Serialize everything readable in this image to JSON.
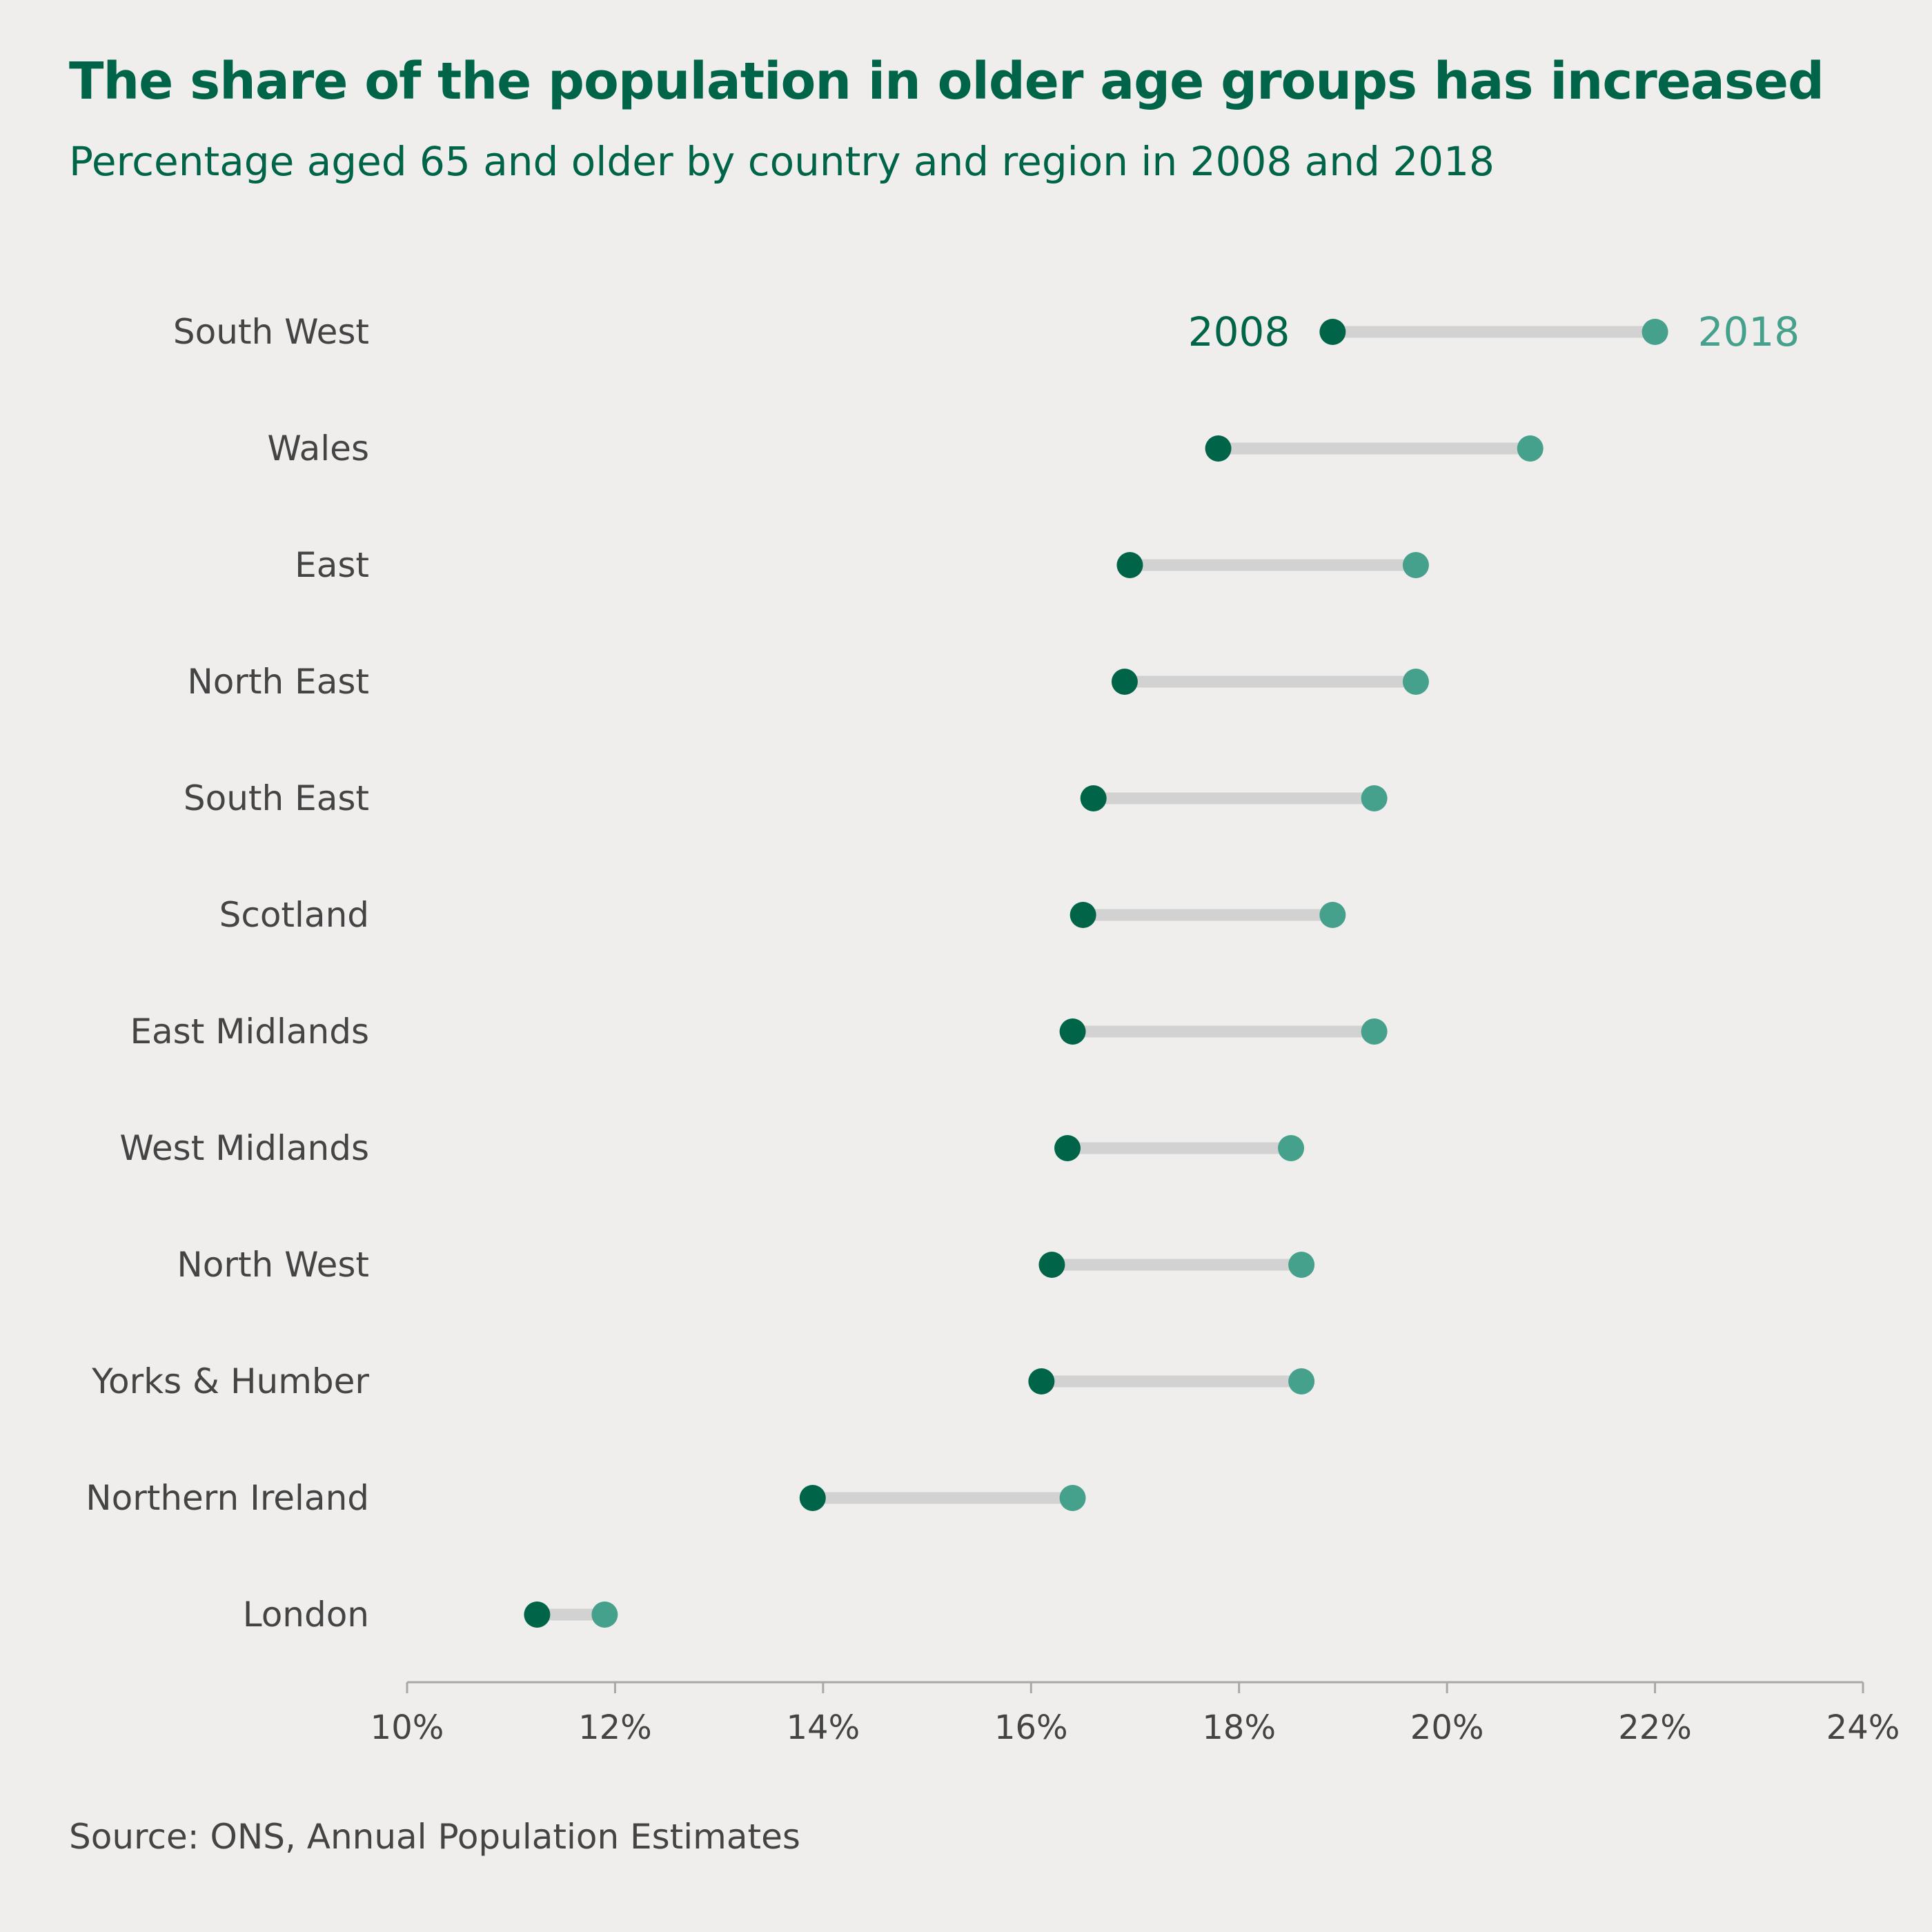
{
  "title": "The share of the population in older age groups has increased",
  "subtitle": "Percentage aged 65 and older by country and region in 2008 and 2018",
  "source": "Source: ONS, Annual Population Estimates",
  "colors": {
    "background": "#f0eeec",
    "series_2008": "#006548",
    "series_2018": "#45a08c",
    "connector": "#d2d2d2",
    "axis": "#a8a8a8",
    "text": "#444444"
  },
  "chart_data": {
    "type": "dumbbell",
    "xlim": [
      10,
      24
    ],
    "xticks": [
      10,
      12,
      14,
      16,
      18,
      20,
      22,
      24
    ],
    "xtick_labels": [
      "10%",
      "12%",
      "14%",
      "16%",
      "18%",
      "20%",
      "22%",
      "24%"
    ],
    "categories": [
      "South West",
      "Wales",
      "East",
      "North East",
      "South East",
      "Scotland",
      "East Midlands",
      "West Midlands",
      "North West",
      "Yorks & Humber",
      "Northern Ireland",
      "London"
    ],
    "series": [
      {
        "name": "2008",
        "values": [
          18.9,
          17.8,
          16.95,
          16.9,
          16.6,
          16.5,
          16.4,
          16.35,
          16.2,
          16.1,
          13.9,
          11.25
        ]
      },
      {
        "name": "2018",
        "values": [
          22.0,
          20.8,
          19.7,
          19.7,
          19.3,
          18.9,
          19.3,
          18.5,
          18.6,
          18.6,
          16.4,
          11.9
        ]
      }
    ]
  }
}
